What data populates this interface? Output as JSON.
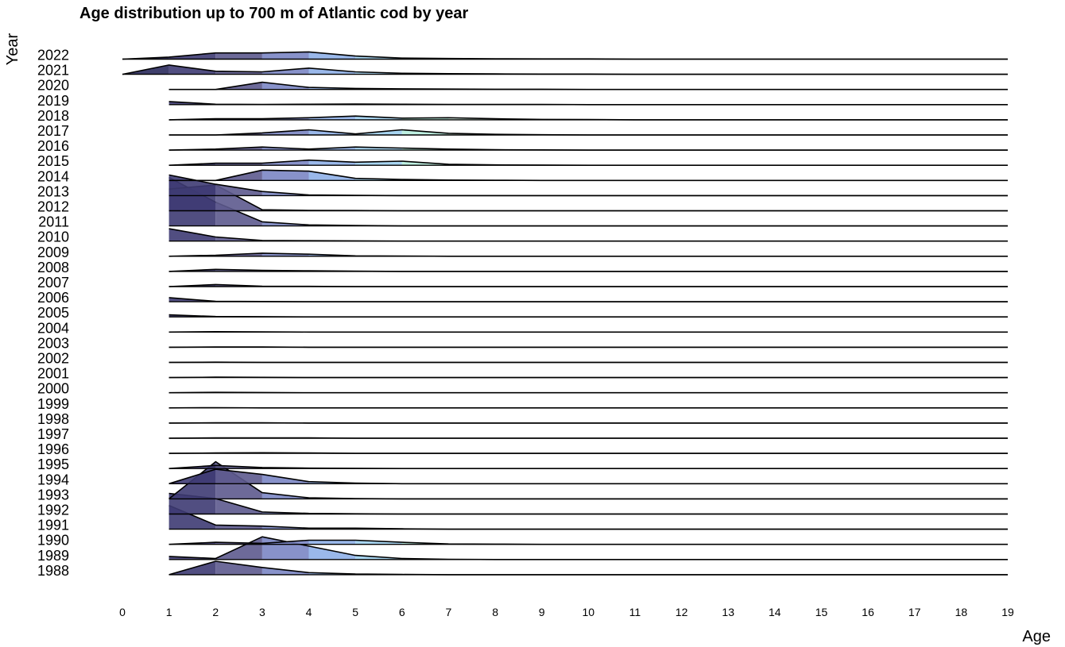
{
  "chart_data": {
    "type": "area",
    "subtype": "ridgeline",
    "title": "Age distribution up to 700 m of Atlantic cod by year",
    "xlabel": "Age",
    "ylabel": "Year",
    "xlim": [
      0,
      19
    ],
    "x_ticks": [
      0,
      1,
      2,
      3,
      4,
      5,
      6,
      7,
      8,
      9,
      10,
      11,
      12,
      13,
      14,
      15,
      16,
      17,
      18,
      19
    ],
    "x": [
      0,
      1,
      2,
      3,
      4,
      5,
      6,
      7,
      8,
      9,
      10,
      11,
      12,
      13,
      14,
      15,
      16,
      17,
      18,
      19
    ],
    "fill_colors": [
      "#2a2a5c",
      "#3e3b73",
      "#5d5a8e",
      "#7b86c4",
      "#8fb0e8",
      "#9fd0f0",
      "#b7eede",
      "#d8f5e8",
      "#ffffff"
    ],
    "series": [
      {
        "name": "2022",
        "values": [
          0,
          0.1,
          0.3,
          0.3,
          0.35,
          0.15,
          0.05,
          0.03,
          0.02,
          0.01,
          0.01,
          0,
          0,
          0,
          0,
          0,
          0,
          0,
          0,
          0
        ]
      },
      {
        "name": "2021",
        "values": [
          0,
          0.45,
          0.15,
          0.12,
          0.3,
          0.12,
          0.05,
          0.03,
          0.02,
          0.01,
          0.01,
          0,
          0,
          0,
          0,
          0,
          0,
          0,
          0,
          0
        ]
      },
      {
        "name": "2020",
        "values": [
          null,
          0,
          0,
          0.35,
          0.1,
          0.05,
          0.03,
          0.02,
          0.01,
          0.01,
          0,
          0,
          0,
          0,
          0,
          0,
          0,
          0,
          0,
          0
        ]
      },
      {
        "name": "2019",
        "values": [
          null,
          0.15,
          0.02,
          0.01,
          0.02,
          0.03,
          0.02,
          0.01,
          0.01,
          0.01,
          0,
          0,
          0,
          0,
          0,
          0,
          0,
          0,
          0,
          0
        ]
      },
      {
        "name": "2018",
        "values": [
          null,
          0,
          0.05,
          0.05,
          0.1,
          0.18,
          0.08,
          0.1,
          0.05,
          0.02,
          0.01,
          0,
          0,
          0,
          0,
          0,
          0,
          0,
          0,
          0
        ]
      },
      {
        "name": "2017",
        "values": [
          null,
          0,
          0,
          0.1,
          0.25,
          0.05,
          0.25,
          0.08,
          0.03,
          0.01,
          0,
          0,
          0,
          0,
          0,
          0,
          0,
          0,
          0,
          0
        ]
      },
      {
        "name": "2016",
        "values": [
          null,
          0,
          0.05,
          0.15,
          0.05,
          0.15,
          0.1,
          0.05,
          0.02,
          0.01,
          0,
          0,
          0,
          0,
          0,
          0,
          0,
          0,
          0,
          0
        ]
      },
      {
        "name": "2015",
        "values": [
          null,
          0,
          0.1,
          0.1,
          0.25,
          0.15,
          0.2,
          0.05,
          0.02,
          0.01,
          0,
          0,
          0,
          0,
          0,
          0,
          0,
          0,
          0,
          0
        ]
      },
      {
        "name": "2014",
        "values": [
          null,
          0,
          0,
          0.5,
          0.45,
          0.1,
          0.05,
          0.02,
          0.01,
          0,
          0,
          0,
          0,
          0,
          0,
          0,
          0,
          0,
          0,
          0
        ]
      },
      {
        "name": "2013",
        "values": [
          null,
          1.0,
          0.55,
          0.2,
          0.03,
          0.01,
          0,
          0,
          0,
          0,
          0,
          0,
          0,
          0,
          0,
          0,
          0,
          0,
          0,
          0
        ]
      },
      {
        "name": "2012",
        "values": [
          null,
          1.05,
          1.25,
          0.05,
          0.02,
          0.01,
          0,
          0,
          0,
          0,
          0,
          0,
          0,
          0,
          0,
          0,
          0,
          0,
          0,
          0
        ]
      },
      {
        "name": "2011",
        "values": [
          null,
          2.35,
          1.15,
          0.2,
          0.05,
          0.02,
          0,
          0,
          0,
          0,
          0,
          0,
          0,
          0,
          0,
          0,
          0,
          0,
          0,
          0
        ]
      },
      {
        "name": "2010",
        "values": [
          null,
          0.6,
          0.2,
          0.03,
          0.02,
          0.01,
          0,
          0,
          0,
          0,
          0,
          0,
          0,
          0,
          0,
          0,
          0,
          0,
          0,
          0
        ]
      },
      {
        "name": "2009",
        "values": [
          null,
          0,
          0.05,
          0.15,
          0.1,
          0.02,
          0.01,
          0,
          0,
          0,
          0,
          0,
          0,
          0,
          0,
          0,
          0,
          0,
          0,
          0
        ]
      },
      {
        "name": "2008",
        "values": [
          null,
          0,
          0.1,
          0.05,
          0.03,
          0.01,
          0,
          0,
          0,
          0,
          0,
          0,
          0,
          0,
          0,
          0,
          0,
          0,
          0,
          0
        ]
      },
      {
        "name": "2007",
        "values": [
          null,
          0,
          0.1,
          0.02,
          0.01,
          0,
          0,
          0,
          0,
          0,
          0,
          0,
          0,
          0,
          0,
          0,
          0,
          0,
          0,
          0
        ]
      },
      {
        "name": "2006",
        "values": [
          null,
          0.2,
          0.02,
          0.01,
          0,
          0,
          0,
          0,
          0,
          0,
          0,
          0,
          0,
          0,
          0,
          0,
          0,
          0,
          0,
          0
        ]
      },
      {
        "name": "2005",
        "values": [
          null,
          0.1,
          0.02,
          0.01,
          0,
          0,
          0,
          0,
          0,
          0,
          0,
          0,
          0,
          0,
          0,
          0,
          0,
          0,
          0,
          0
        ]
      },
      {
        "name": "2004",
        "values": [
          null,
          0,
          0.02,
          0.01,
          0,
          0,
          0,
          0,
          0,
          0,
          0,
          0,
          0,
          0,
          0,
          0,
          0,
          0,
          0,
          0
        ]
      },
      {
        "name": "2003",
        "values": [
          null,
          0,
          0.01,
          0.01,
          0,
          0,
          0,
          0,
          0,
          0,
          0,
          0,
          0,
          0,
          0,
          0,
          0,
          0,
          0,
          0
        ]
      },
      {
        "name": "2002",
        "values": [
          null,
          0,
          0.01,
          0,
          0,
          0,
          0,
          0,
          0,
          0,
          0,
          0,
          0,
          0,
          0,
          0,
          0,
          0,
          0,
          0
        ]
      },
      {
        "name": "2001",
        "values": [
          null,
          0,
          0.02,
          0.01,
          0,
          0,
          0,
          0,
          0,
          0,
          0,
          0,
          0,
          0,
          0,
          0,
          0,
          0,
          0,
          0
        ]
      },
      {
        "name": "2000",
        "values": [
          null,
          0,
          0.02,
          0.01,
          0,
          0,
          0,
          0,
          0,
          0,
          0,
          0,
          0,
          0,
          0,
          0,
          0,
          0,
          0,
          0
        ]
      },
      {
        "name": "1999",
        "values": [
          null,
          0,
          0.01,
          0,
          0,
          0,
          0,
          0,
          0,
          0,
          0,
          0,
          0,
          0,
          0,
          0,
          0,
          0,
          0,
          0
        ]
      },
      {
        "name": "1998",
        "values": [
          null,
          0,
          0.01,
          0.01,
          0,
          0,
          0,
          0,
          0,
          0,
          0,
          0,
          0,
          0,
          0,
          0,
          0,
          0,
          0,
          0
        ]
      },
      {
        "name": "1997",
        "values": [
          null,
          0,
          0.02,
          0.02,
          0.02,
          0,
          0,
          0,
          0,
          0,
          0,
          0,
          0,
          0,
          0,
          0,
          0,
          0,
          0,
          0
        ]
      },
      {
        "name": "1996",
        "values": [
          null,
          0,
          0.02,
          0.03,
          0.02,
          0,
          0,
          0,
          0,
          0,
          0,
          0,
          0,
          0,
          0,
          0,
          0,
          0,
          0,
          0
        ]
      },
      {
        "name": "1995",
        "values": [
          null,
          0,
          0.15,
          0.05,
          0.02,
          0.01,
          0,
          0,
          0,
          0,
          0,
          0,
          0,
          0,
          0,
          0,
          0,
          0,
          0,
          0
        ]
      },
      {
        "name": "1994",
        "values": [
          null,
          0,
          0.7,
          0.45,
          0.1,
          0.03,
          0,
          0,
          0,
          0,
          0,
          0,
          0,
          0,
          0,
          0,
          0,
          0,
          0,
          0
        ]
      },
      {
        "name": "1993",
        "values": [
          null,
          0,
          1.8,
          0.3,
          0.05,
          0.01,
          0,
          0,
          0,
          0,
          0,
          0,
          0,
          0,
          0,
          0,
          0,
          0,
          0,
          0
        ]
      },
      {
        "name": "1992",
        "values": [
          null,
          1.0,
          0.75,
          0.1,
          0.03,
          0.01,
          0,
          0,
          0,
          0,
          0,
          0,
          0,
          0,
          0,
          0,
          0,
          0,
          0,
          0
        ]
      },
      {
        "name": "1991",
        "values": [
          null,
          1.15,
          0.2,
          0.15,
          0.05,
          0.05,
          0.02,
          0,
          0,
          0,
          0,
          0,
          0,
          0,
          0,
          0,
          0,
          0,
          0,
          0
        ]
      },
      {
        "name": "1990",
        "values": [
          null,
          0,
          0.1,
          0.05,
          0.2,
          0.2,
          0.1,
          0.02,
          0.01,
          0,
          0,
          0,
          0,
          0,
          0,
          0,
          0,
          0,
          0,
          0
        ]
      },
      {
        "name": "1989",
        "values": [
          null,
          0.15,
          0.05,
          1.1,
          0.65,
          0.2,
          0.05,
          0.01,
          0,
          0,
          0,
          0,
          0,
          0,
          0,
          0,
          0,
          0,
          0,
          0
        ]
      },
      {
        "name": "1988",
        "values": [
          null,
          0,
          0.65,
          0.35,
          0.1,
          0.03,
          0.01,
          0,
          0,
          0,
          0,
          0,
          0,
          0,
          0,
          0,
          0,
          0,
          0,
          0
        ]
      }
    ]
  }
}
